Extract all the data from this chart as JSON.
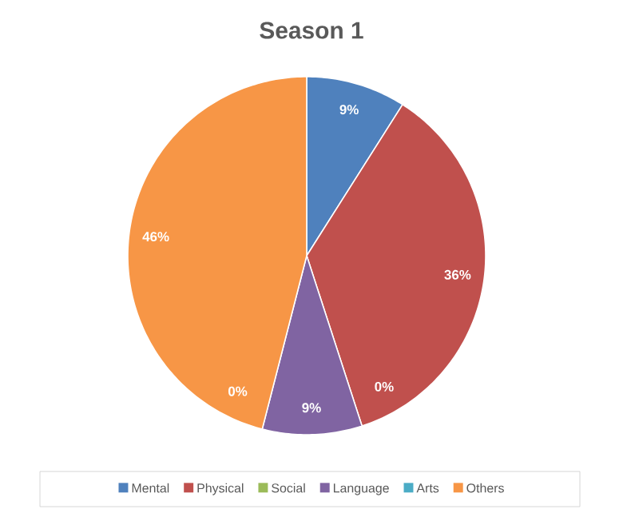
{
  "chart_data": {
    "type": "pie",
    "title": "Season 1",
    "categories": [
      "Mental",
      "Physical",
      "Social",
      "Language",
      "Arts",
      "Others"
    ],
    "values": [
      9,
      36,
      0,
      9,
      0,
      46
    ],
    "colors": [
      "#4f81bd",
      "#c0504d",
      "#9bbb59",
      "#8064a2",
      "#4bacc6",
      "#f79646"
    ],
    "value_labels": [
      "9%",
      "36%",
      "0%",
      "9%",
      "0%",
      "46%"
    ],
    "legend": "bottom"
  }
}
